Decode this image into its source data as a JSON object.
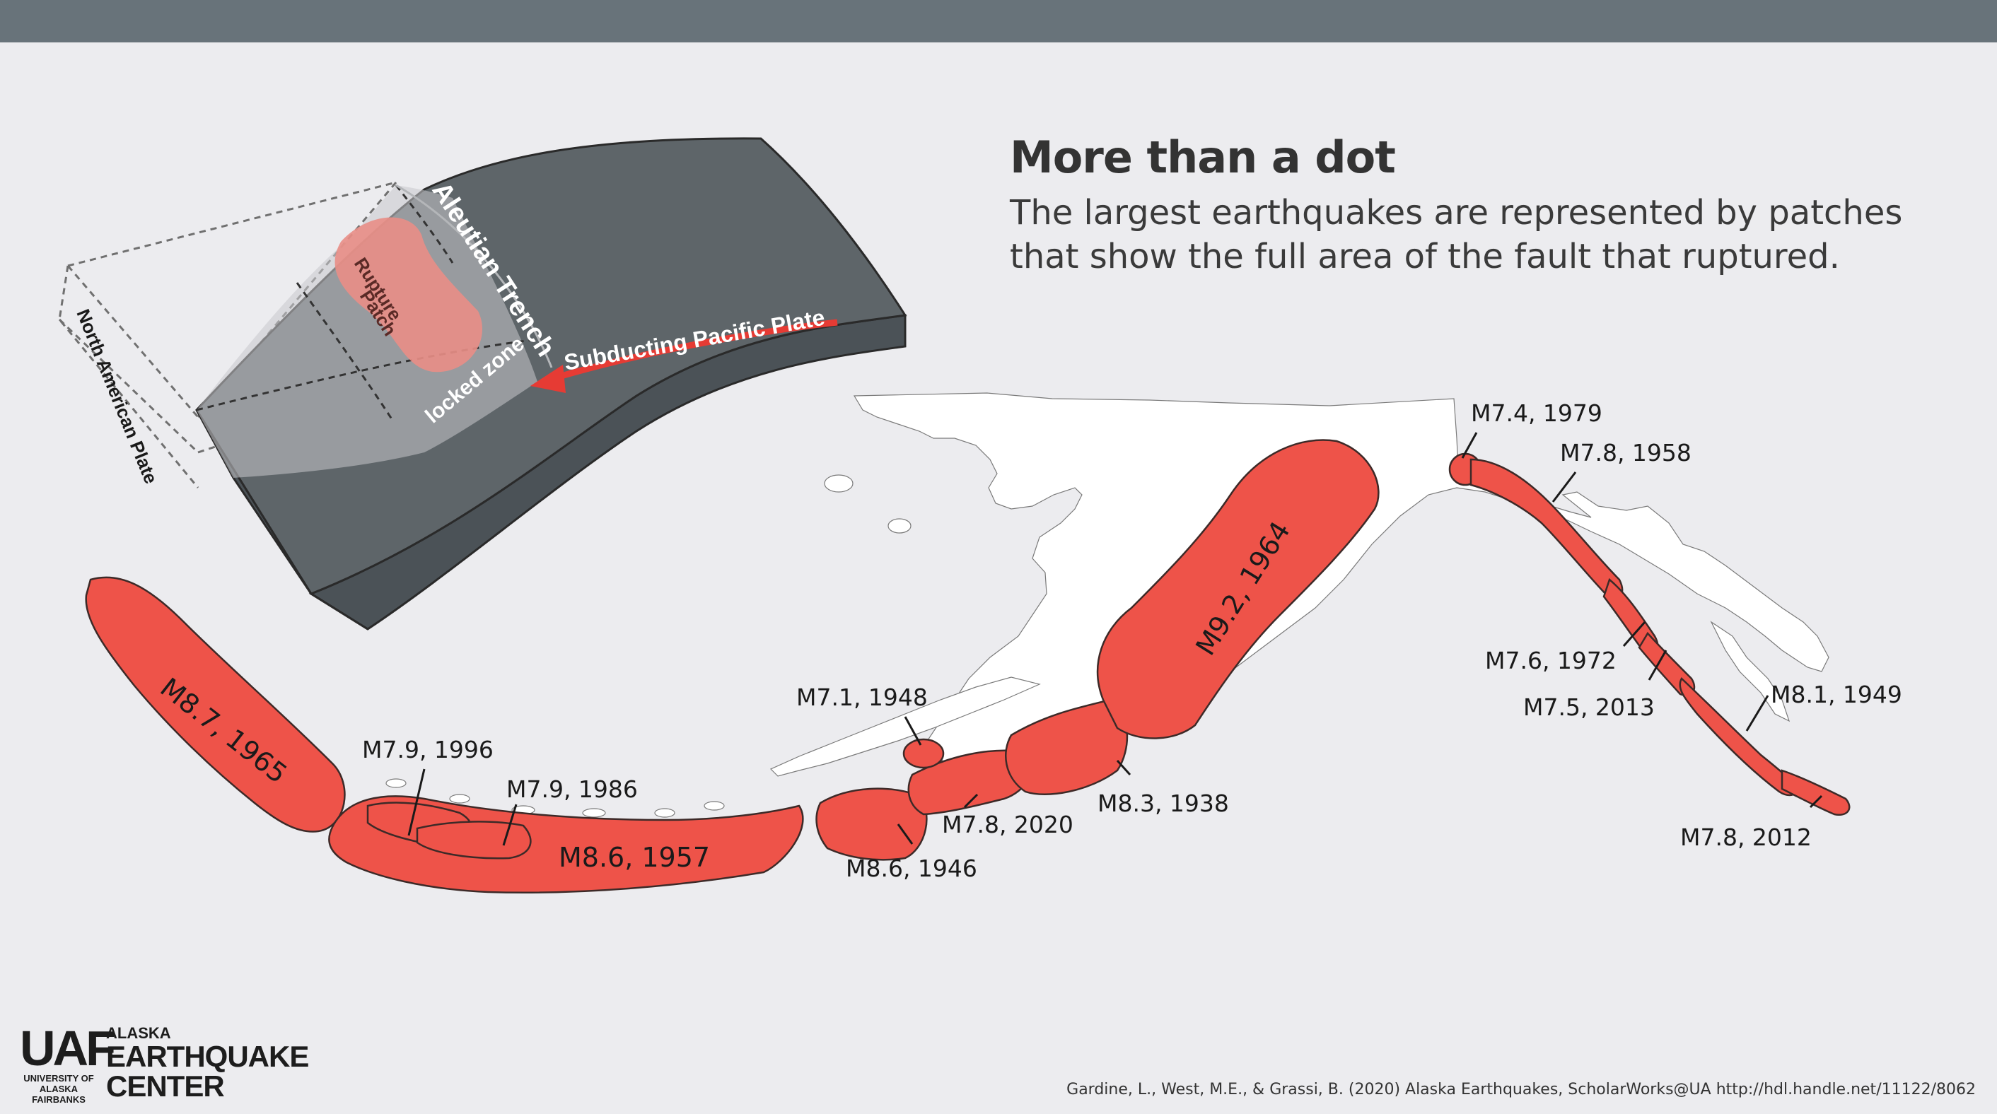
{
  "header": {
    "title": "More than a dot",
    "subtitle": "The largest earthquakes are represented by patches that show the full area of the fault that ruptured."
  },
  "diagram": {
    "trench_label": "Aleutian Trench",
    "rupture_label": "Rupture Patch",
    "locked_label": "locked zone",
    "pacific_label": "Subducting Pacific Plate",
    "north_american_label": "North American Plate"
  },
  "earthquakes": [
    {
      "label": "M8.7, 1965"
    },
    {
      "label": "M7.9, 1996"
    },
    {
      "label": "M7.9, 1986"
    },
    {
      "label": "M8.6, 1957"
    },
    {
      "label": "M8.6, 1946"
    },
    {
      "label": "M7.1, 1948"
    },
    {
      "label": "M7.8, 2020"
    },
    {
      "label": "M8.3, 1938"
    },
    {
      "label": "M9.2, 1964"
    },
    {
      "label": "M7.4, 1979"
    },
    {
      "label": "M7.8, 1958"
    },
    {
      "label": "M7.6, 1972"
    },
    {
      "label": "M7.5, 2013"
    },
    {
      "label": "M8.1, 1949"
    },
    {
      "label": "M7.8, 2012"
    }
  ],
  "colors": {
    "rupture_fill": "#ee5349",
    "topbar": "#68737a",
    "background": "#ececef",
    "slab": "#5e6569",
    "arrow": "#e63b34"
  },
  "logo": {
    "mark": "UAF",
    "university": "UNIVERSITY OF ALASKA FAIRBANKS",
    "line1": "ALASKA",
    "line2": "EARTHQUAKE",
    "line3": "CENTER"
  },
  "citation": "Gardine, L., West, M.E., & Grassi, B. (2020) Alaska Earthquakes, ScholarWorks@UA http://hdl.handle.net/11122/8062"
}
